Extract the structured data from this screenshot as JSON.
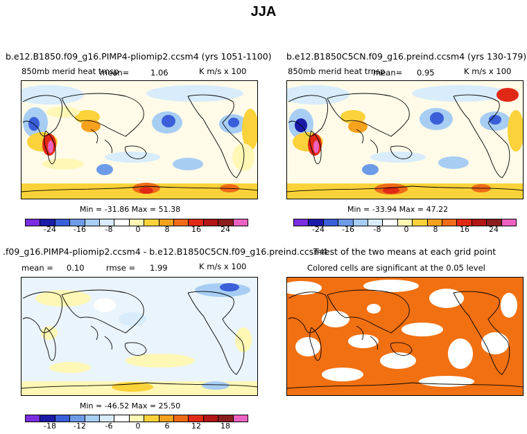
{
  "figure": {
    "title": "JJA"
  },
  "panels": [
    {
      "id": "p1",
      "title": "b.e12.B1850.f09_g16.PIMP4-pliomip2.ccsm4 (yrs 1051-1100)",
      "variable": "850mb merid heat trnsp",
      "mean_label": "mean=",
      "mean_value": "1.06",
      "units": "K m/s x 100",
      "min_max": "Min = -31.86 Max =  51.38",
      "ticks": [
        "-24",
        "-16",
        "-8",
        "0",
        "8",
        "16",
        "24"
      ]
    },
    {
      "id": "p2",
      "title": "b.e12.B1850C5CN.f09_g16.preind.ccsm4 (yrs 130-179)",
      "variable": "850mb merid heat trnsp",
      "mean_label": "mean=",
      "mean_value": "0.95",
      "units": "K m/s x 100",
      "min_max": "Min = -33.94 Max =  47.22",
      "ticks": [
        "-24",
        "-16",
        "-8",
        "0",
        "8",
        "16",
        "24"
      ]
    },
    {
      "id": "p3",
      "title": ".f09_g16.PIMP4-pliomip2.ccsm4 - b.e12.B1850C5CN.f09_g16.preind.ccsm4",
      "mean_label": "mean =",
      "mean_value": "0.10",
      "rmse_label": "rmse =",
      "rmse_value": "1.99",
      "units": "K m/s x 100",
      "min_max": "Min = -46.52 Max =  25.50",
      "ticks": [
        "-18",
        "-12",
        "-6",
        "0",
        "6",
        "12",
        "18"
      ]
    },
    {
      "id": "p4",
      "title": "T-test of the two means at each grid point",
      "subtitle": "Colored cells are significant at the 0.05 level",
      "significance_color": "#f07012"
    }
  ],
  "colorbar": {
    "colors": [
      "#7a2ee0",
      "#1b1ba8",
      "#3a5fd8",
      "#6d9be8",
      "#a7cdf3",
      "#d8ecfb",
      "#ffffff",
      "#fff7b6",
      "#fbd23a",
      "#f7a21e",
      "#ef6b18",
      "#e02a16",
      "#b21616",
      "#8a1e1e",
      "#ec62c0"
    ]
  }
}
